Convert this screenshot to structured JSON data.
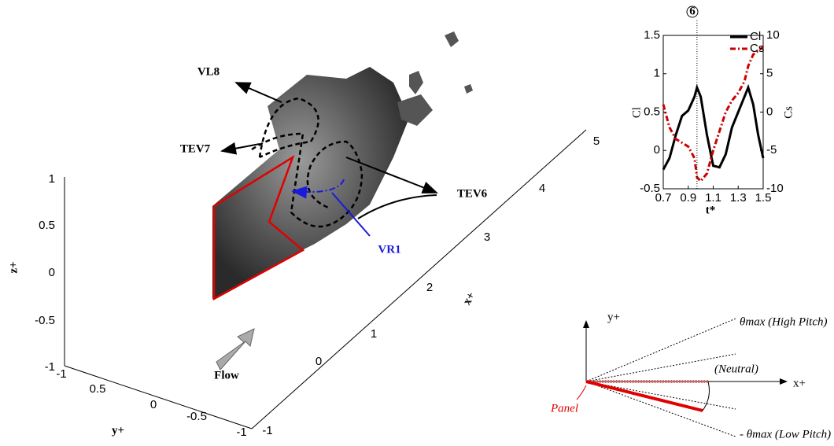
{
  "chart_data": {
    "type": "line",
    "x": [
      0.7,
      0.75,
      0.8,
      0.85,
      0.9,
      0.95,
      0.97,
      1.0,
      1.05,
      1.1,
      1.15,
      1.2,
      1.25,
      1.3,
      1.35,
      1.38,
      1.42,
      1.46,
      1.5
    ],
    "series": [
      {
        "name": "Cl",
        "color": "#000000",
        "values": [
          -0.25,
          -0.1,
          0.2,
          0.45,
          0.52,
          0.7,
          0.82,
          0.7,
          0.2,
          -0.2,
          -0.22,
          -0.05,
          0.3,
          0.5,
          0.7,
          0.82,
          0.6,
          0.2,
          -0.1
        ]
      },
      {
        "name": "Cs",
        "color": "#cc0000",
        "axis": "y2",
        "values": [
          1,
          -2,
          -3.5,
          -4,
          -4.5,
          -6,
          -8.5,
          -9,
          -8,
          -5,
          -2.5,
          0,
          1.5,
          2.5,
          4,
          6,
          7.5,
          8,
          8.5
        ]
      }
    ],
    "xlim": [
      0.7,
      1.5
    ],
    "xticks": [
      0.7,
      0.9,
      1.1,
      1.3,
      1.5
    ],
    "ylim": [
      -0.5,
      1.5
    ],
    "yticks": [
      -0.5,
      0,
      0.5,
      1,
      1.5
    ],
    "y2lim": [
      -10,
      10
    ],
    "y2ticks": [
      -10,
      -5,
      0,
      5,
      10
    ],
    "x_label": "t*",
    "y_label": "Cl",
    "y2_label": "Cs",
    "annotation": {
      "text": "6",
      "x": 0.97
    }
  },
  "scene": {
    "labels": [
      "VL8",
      "TEV7",
      "TEV6",
      "VR1",
      "Flow"
    ],
    "z_axis": {
      "label": "z+",
      "ticks": [
        "1",
        "0.5",
        "0",
        "-0.5",
        "-1"
      ]
    },
    "y_axis": {
      "label": "y+",
      "ticks": [
        "-1",
        "0.5",
        "0",
        "-0.5",
        "-1"
      ]
    },
    "x_axis": {
      "label": "x+",
      "ticks": [
        "-1",
        "0",
        "1",
        "2",
        "3",
        "4",
        "5"
      ]
    }
  },
  "diagram": {
    "y_label": "y+",
    "x_label": "x+",
    "high": "θmax (High Pitch)",
    "neutral": "(Neutral)",
    "low": "- θmax (Low Pitch)",
    "panel": "Panel"
  }
}
